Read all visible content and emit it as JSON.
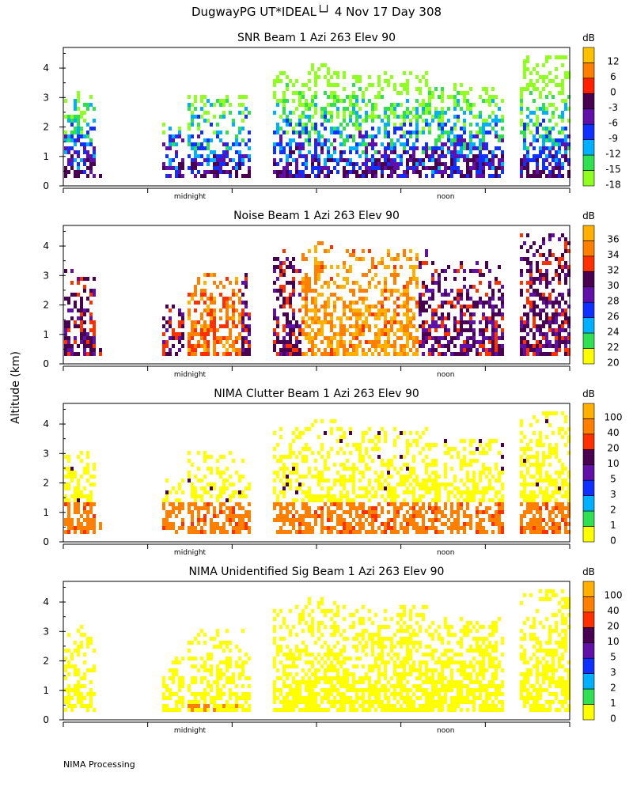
{
  "header": {
    "title": "DugwayPG UT*IDEAL└┘   4 Nov 17 Day 308"
  },
  "yaxis_label": "Altitude (km)",
  "footer": {
    "text": "NIMA Processing"
  },
  "chart_data": [
    {
      "type": "heatmap",
      "title": "SNR Beam 1 Azi 263 Elev 90",
      "colorbar_unit": "dB",
      "colorbar_ticks": [
        "12",
        "6",
        "0",
        "-3",
        "-6",
        "-9",
        "-12",
        "-15",
        "-18"
      ],
      "colors": [
        "#ffc000",
        "#ff7f00",
        "#ff2000",
        "#4a0050",
        "#6010a8",
        "#1030ff",
        "#00b0ff",
        "#30e050",
        "#90ff20"
      ],
      "ylim": [
        0,
        4.7
      ],
      "yticks": [
        "0",
        "1",
        "2",
        "3",
        "4"
      ],
      "x_tick_labels": [
        "midnight",
        "noon"
      ]
    },
    {
      "type": "heatmap",
      "title": "Noise Beam 1 Azi 263 Elev 90",
      "colorbar_unit": "dB",
      "colorbar_ticks": [
        "36",
        "34",
        "32",
        "30",
        "28",
        "26",
        "24",
        "22",
        "20"
      ],
      "colors": [
        "#ffb000",
        "#ff8000",
        "#ff3000",
        "#4a0050",
        "#6010a8",
        "#1030ff",
        "#00b0ff",
        "#30e050",
        "#ffff00"
      ],
      "ylim": [
        0,
        4.7
      ],
      "yticks": [
        "0",
        "1",
        "2",
        "3",
        "4"
      ],
      "x_tick_labels": [
        "midnight",
        "noon"
      ]
    },
    {
      "type": "heatmap",
      "title": "NIMA Clutter Beam 1 Azi 263 Elev 90",
      "colorbar_unit": "dB",
      "colorbar_ticks": [
        "100",
        "40",
        "20",
        "10",
        "5",
        "3",
        "2",
        "1",
        "0"
      ],
      "colors": [
        "#ffb000",
        "#ff8000",
        "#ff3000",
        "#4a0050",
        "#6010a8",
        "#1030ff",
        "#00b0ff",
        "#30e050",
        "#ffff00"
      ],
      "ylim": [
        0,
        4.7
      ],
      "yticks": [
        "0",
        "1",
        "2",
        "3",
        "4"
      ],
      "x_tick_labels": [
        "midnight",
        "noon"
      ]
    },
    {
      "type": "heatmap",
      "title": "NIMA Unidentified Sig Beam 1 Azi 263 Elev 90",
      "colorbar_unit": "dB",
      "colorbar_ticks": [
        "100",
        "40",
        "20",
        "10",
        "5",
        "3",
        "2",
        "1",
        "0"
      ],
      "colors": [
        "#ffb000",
        "#ff8000",
        "#ff3000",
        "#4a0050",
        "#6010a8",
        "#1030ff",
        "#00b0ff",
        "#30e050",
        "#ffff00"
      ],
      "ylim": [
        0,
        4.7
      ],
      "yticks": [
        "0",
        "1",
        "2",
        "3",
        "4"
      ],
      "x_tick_labels": [
        "midnight",
        "noon"
      ]
    }
  ]
}
